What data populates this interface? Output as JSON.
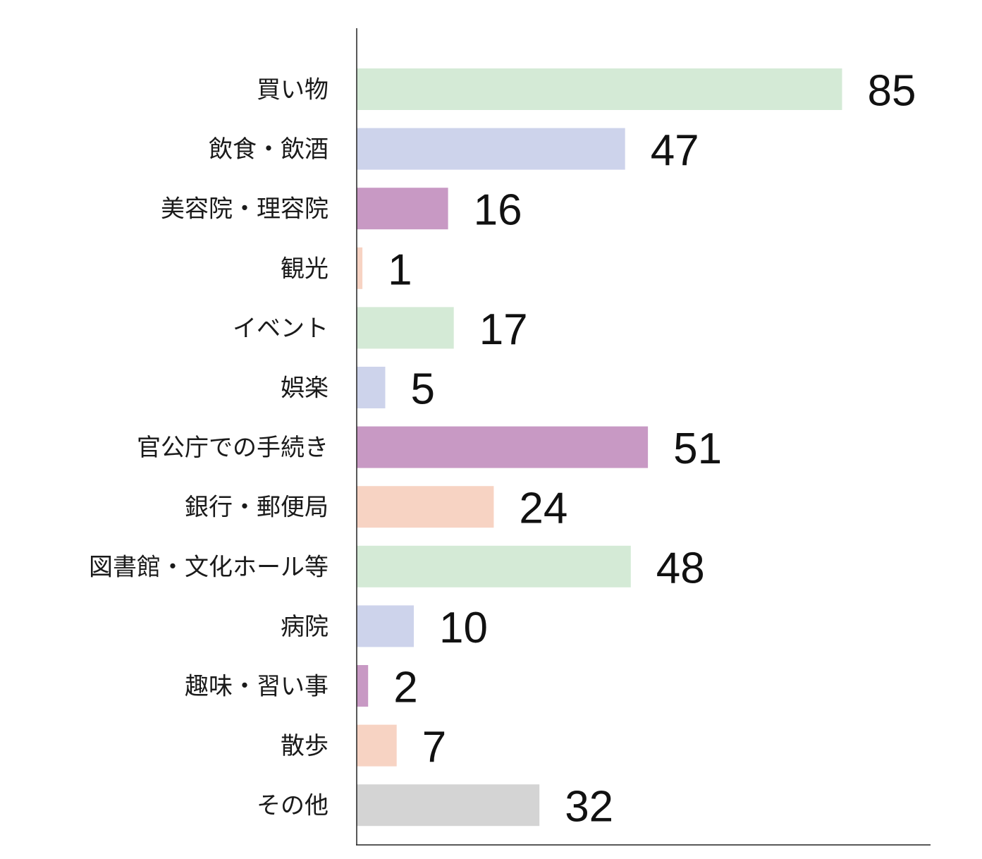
{
  "chart_data": {
    "type": "bar",
    "orientation": "horizontal",
    "categories": [
      "買い物",
      "飲食・飲酒",
      "美容院・理容院",
      "観光",
      "イベント",
      "娯楽",
      "官公庁での手続き",
      "銀行・郵便局",
      "図書館・文化ホール等",
      "病院",
      "趣味・習い事",
      "散歩",
      "その他"
    ],
    "values": [
      85,
      47,
      16,
      1,
      17,
      5,
      51,
      24,
      48,
      10,
      2,
      7,
      32
    ],
    "colors": [
      "#d4ead6",
      "#cdd3eb",
      "#c899c4",
      "#f7d3c3",
      "#d4ead6",
      "#cdd3eb",
      "#c899c4",
      "#f7d3c3",
      "#d4ead6",
      "#cdd3eb",
      "#c899c4",
      "#f7d3c3",
      "#d4d4d4"
    ],
    "xlim": [
      0,
      100
    ],
    "data_labels": true,
    "grid": false,
    "legend": "none"
  }
}
